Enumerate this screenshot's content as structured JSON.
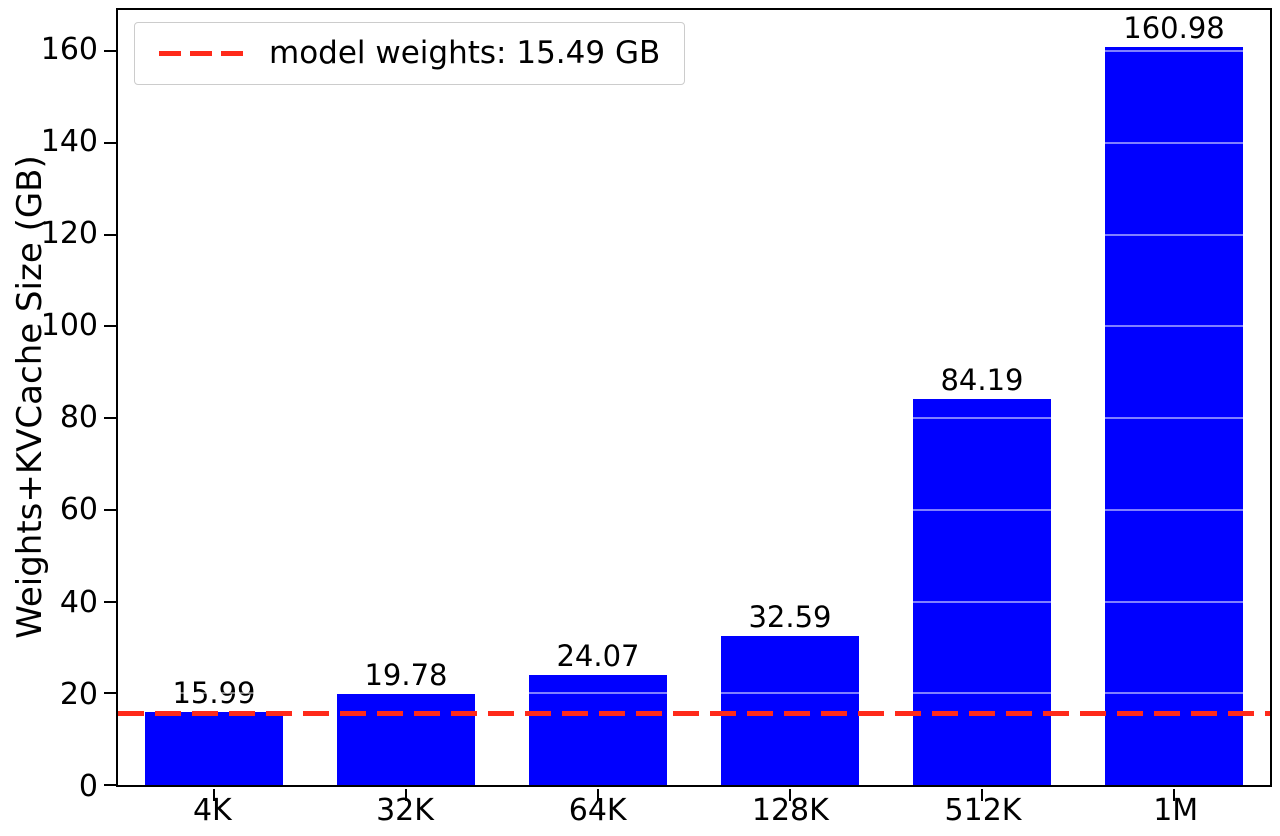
{
  "chart_data": {
    "type": "bar",
    "title": "",
    "xlabel": "",
    "ylabel": "Weights+KVCache Size (GB)",
    "categories": [
      "4K",
      "32K",
      "64K",
      "128K",
      "512K",
      "1M"
    ],
    "values": [
      15.99,
      19.78,
      24.07,
      32.59,
      84.19,
      160.98
    ],
    "bar_labels": [
      "15.99",
      "19.78",
      "24.07",
      "32.59",
      "84.19",
      "160.98"
    ],
    "bar_color": "#0000ff",
    "ylim": [
      0,
      169
    ],
    "yticks": [
      0,
      20,
      40,
      60,
      80,
      100,
      120,
      140,
      160
    ],
    "grid": true,
    "legend": {
      "position": "upper-left",
      "entries": [
        {
          "label": "model weights: 15.49 GB",
          "line_color": "#ff2a1a",
          "line_style": "dashed"
        }
      ]
    },
    "reference_line": {
      "value": 15.49,
      "color": "#ff2a1a",
      "style": "dashed"
    }
  }
}
